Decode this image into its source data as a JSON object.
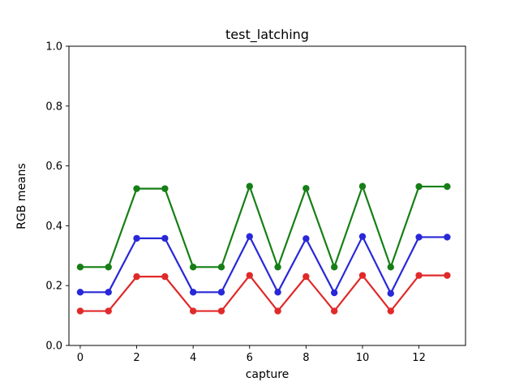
{
  "chart_data": {
    "type": "line",
    "title": "test_latching",
    "xlabel": "capture",
    "ylabel": "RGB means",
    "x": [
      0,
      1,
      2,
      3,
      4,
      5,
      6,
      7,
      8,
      9,
      10,
      11,
      12,
      13
    ],
    "series": [
      {
        "name": "green",
        "color": "#157f15",
        "values": [
          0.262,
          0.262,
          0.524,
          0.524,
          0.262,
          0.262,
          0.532,
          0.262,
          0.525,
          0.262,
          0.532,
          0.262,
          0.531,
          0.531
        ]
      },
      {
        "name": "blue",
        "color": "#2828d8",
        "values": [
          0.178,
          0.178,
          0.358,
          0.358,
          0.178,
          0.178,
          0.364,
          0.178,
          0.357,
          0.176,
          0.364,
          0.174,
          0.362,
          0.362
        ]
      },
      {
        "name": "red",
        "color": "#e02a2a",
        "values": [
          0.115,
          0.115,
          0.23,
          0.23,
          0.115,
          0.115,
          0.234,
          0.115,
          0.23,
          0.115,
          0.234,
          0.115,
          0.234,
          0.234
        ]
      }
    ],
    "xlim": [
      -0.4,
      13.65
    ],
    "ylim": [
      0,
      1
    ],
    "xticks": [
      0,
      2,
      4,
      6,
      8,
      10,
      12
    ],
    "yticks": [
      0,
      0.2,
      0.4,
      0.6,
      0.8,
      1.0
    ],
    "grid": false,
    "legend": "none",
    "marker": "circle"
  }
}
